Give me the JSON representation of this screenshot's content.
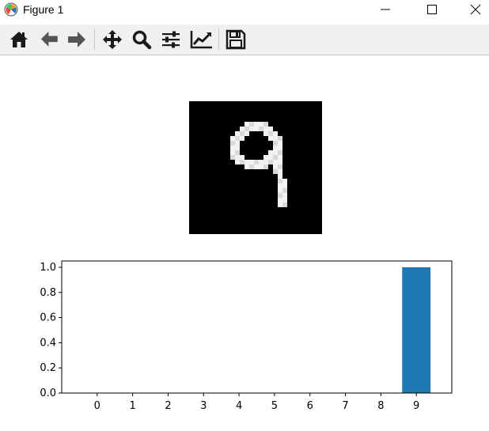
{
  "window": {
    "title": "Figure 1"
  },
  "toolbar": {
    "tools": [
      "home-icon",
      "back-arrow-icon",
      "forward-arrow-icon",
      "pan-icon",
      "zoom-icon",
      "configure-subplots-icon",
      "edit-axis-icon",
      "save-icon"
    ]
  },
  "colors": {
    "bar": "#1f77b4",
    "image_background": "#000000"
  },
  "image_panel": {
    "content": "28x28 grayscale image of handwritten digit 9"
  },
  "chart_data": {
    "type": "bar",
    "categories": [
      "0",
      "1",
      "2",
      "3",
      "4",
      "5",
      "6",
      "7",
      "8",
      "9"
    ],
    "values": [
      0,
      0,
      0,
      0,
      0,
      0,
      0,
      0,
      0,
      1.0
    ],
    "ylim": [
      0,
      1.05
    ],
    "yticks": [
      "0.0",
      "0.2",
      "0.4",
      "0.6",
      "0.8",
      "1.0"
    ],
    "title": "",
    "xlabel": "",
    "ylabel": "",
    "grid": false
  }
}
